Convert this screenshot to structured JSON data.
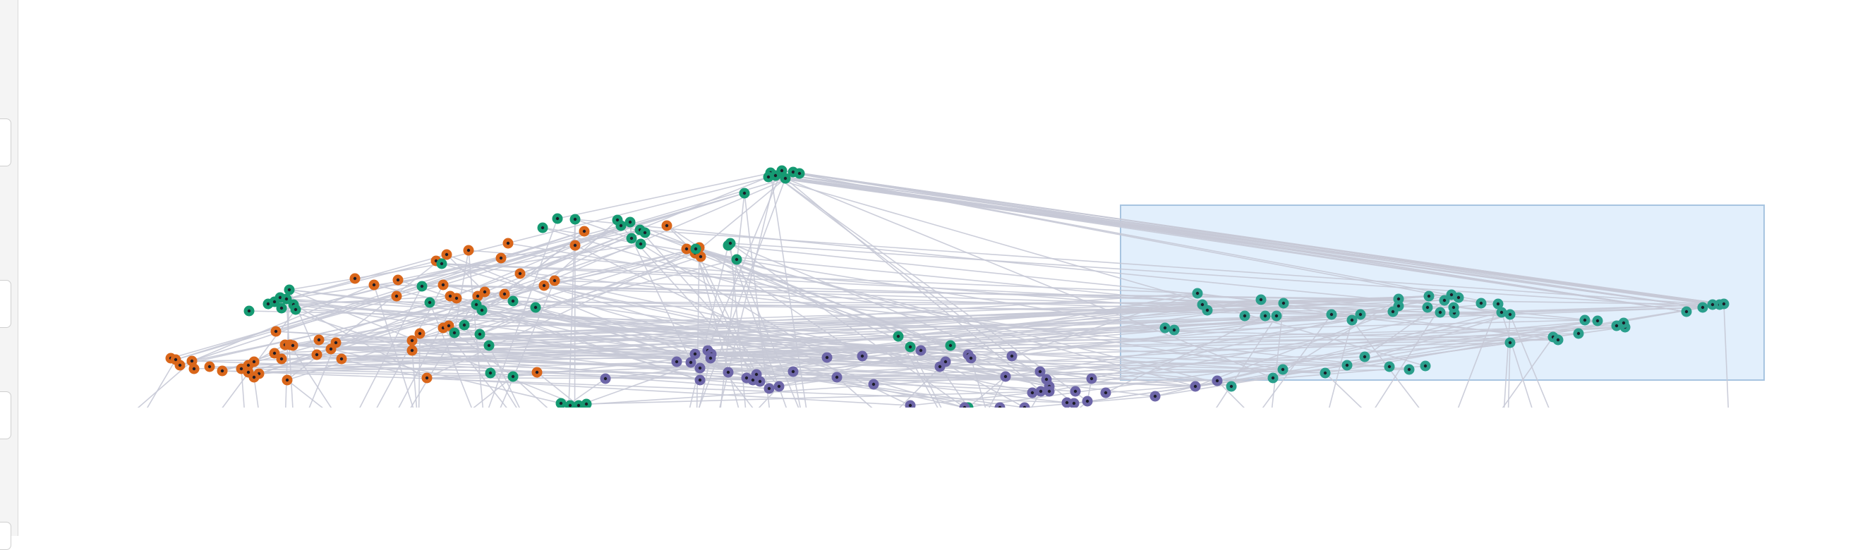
{
  "app": {
    "view": "network-graph"
  },
  "colors": {
    "orange": "#d9661a",
    "green": "#159a72",
    "purple": "#6d66a8",
    "teal": "#2a9f8c",
    "edge": "#c7c9d6",
    "selection_fill": "#e2effc",
    "selection_stroke": "#a7c4e0"
  },
  "selection": {
    "active": true,
    "selected_group": "teal"
  },
  "groups": [
    "orange",
    "green",
    "purple",
    "teal"
  ],
  "left_rail": {
    "tabs": [
      "panel-tab-1",
      "panel-tab-2",
      "panel-tab-3",
      "panel-tab-4"
    ]
  }
}
